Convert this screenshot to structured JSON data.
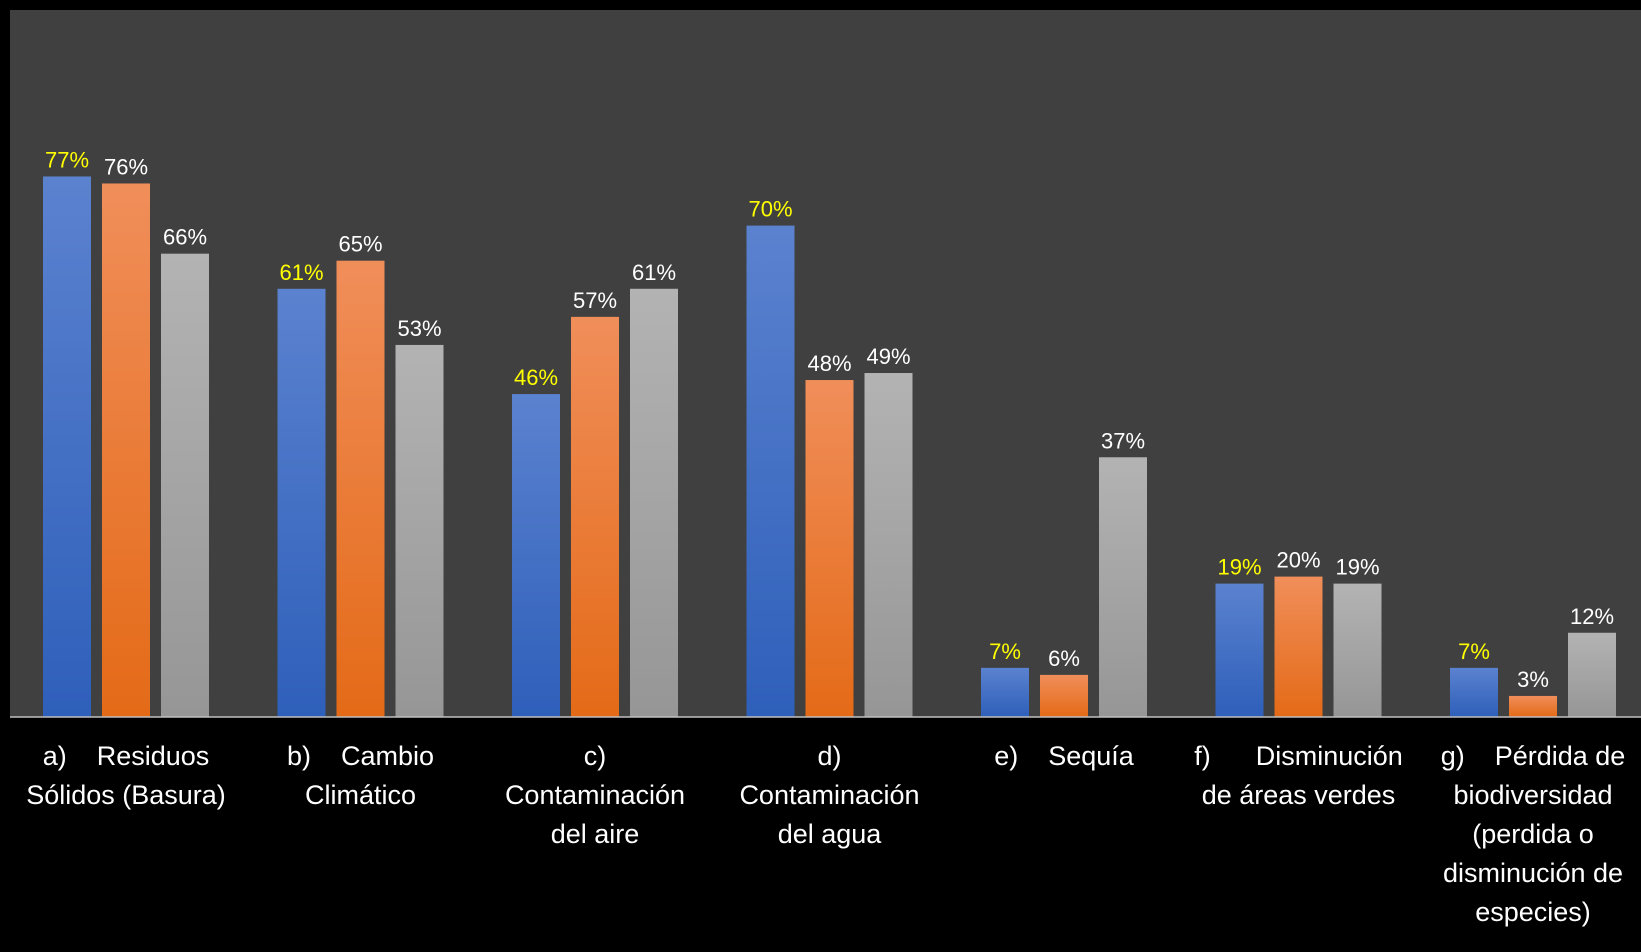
{
  "chart_data": {
    "type": "bar",
    "title": "",
    "xlabel": "",
    "ylabel": "",
    "ylim": [
      0,
      85
    ],
    "grid": false,
    "legend": "none",
    "categories": [
      [
        "a)    Residuos",
        "Sólidos (Basura)"
      ],
      [
        "b)    Cambio",
        "Climático"
      ],
      [
        "c)",
        "Contaminación",
        "del aire"
      ],
      [
        "d)",
        "Contaminación",
        "del agua"
      ],
      [
        "e)    Sequía"
      ],
      [
        "f)      Disminución",
        "de áreas verdes"
      ],
      [
        "g)    Pérdida de",
        "biodiversidad",
        "(perdida o",
        "disminución de",
        "especies)"
      ]
    ],
    "series": [
      {
        "values": [
          77,
          61,
          46,
          70,
          7,
          19,
          7
        ],
        "labels": [
          "77%",
          "61%",
          "46%",
          "70%",
          "7%",
          "19%",
          "7%"
        ],
        "color_top": "#5b82cf",
        "color_bottom": "#2e5fba",
        "label_color": "#ffff00"
      },
      {
        "values": [
          76,
          65,
          57,
          48,
          6,
          20,
          3
        ],
        "labels": [
          "76%",
          "65%",
          "57%",
          "48%",
          "6%",
          "20%",
          "3%"
        ],
        "color_top": "#f08e5a",
        "color_bottom": "#e46a17",
        "label_color": "#ffffff"
      },
      {
        "values": [
          66,
          53,
          61,
          49,
          37,
          19,
          12
        ],
        "labels": [
          "66%",
          "53%",
          "61%",
          "49%",
          "37%",
          "19%",
          "12%"
        ],
        "color_top": "#b3b3b3",
        "color_bottom": "#969696",
        "label_color": "#ffffff"
      }
    ],
    "colors": {
      "page_background": "#000000",
      "plot_background": "#404040",
      "axis_line": "#bfbfbf",
      "category_text": "#ffffff"
    }
  }
}
